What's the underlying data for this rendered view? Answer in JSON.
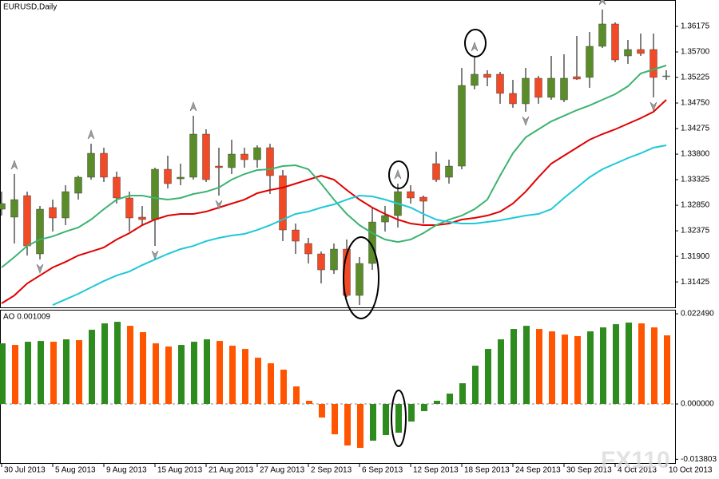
{
  "chart_data": [
    {
      "type": "candlestick",
      "title": "EURUSD,Daily",
      "watermark": "FX110",
      "categories": [
        "30 Jul 2013",
        null,
        null,
        null,
        "5 Aug 2013",
        null,
        null,
        null,
        "9 Aug 2013",
        null,
        null,
        null,
        "15 Aug 2013",
        null,
        null,
        null,
        "21 Aug 2013",
        null,
        null,
        null,
        "27 Aug 2013",
        null,
        null,
        null,
        "2 Sep 2013",
        null,
        null,
        null,
        "6 Sep 2013",
        null,
        null,
        null,
        "12 Sep 2013",
        null,
        null,
        null,
        "18 Sep 2013",
        null,
        null,
        null,
        "24 Sep 2013",
        null,
        null,
        null,
        "30 Sep 2013",
        null,
        null,
        null,
        "4 Oct 2013",
        null,
        null,
        null,
        "10 Oct 2013"
      ],
      "open": [
        1.32777,
        1.32629,
        1.33029,
        1.31946,
        1.32807,
        1.32614,
        1.33074,
        1.33371,
        1.33816,
        1.33371,
        1.32985,
        1.32629,
        1.32584,
        1.33519,
        1.33341,
        1.33371,
        1.34172,
        1.33578,
        1.33549,
        1.33801,
        1.33697,
        1.3392,
        1.334,
        1.32391,
        1.32139,
        1.31946,
        1.31649,
        1.32035,
        1.31174,
        1.31768,
        1.32539,
        1.32658,
        1.33103,
        1.33,
        1.33623,
        1.33371,
        1.33578,
        1.35077,
        1.35285,
        1.35285,
        1.34929,
        1.34736,
        1.35211,
        1.34855,
        1.3481,
        1.3524,
        1.35226,
        1.35804,
        1.3622,
        1.35626,
        1.35745,
        1.35745,
        1.3524
      ],
      "high": [
        1.33103,
        1.3343,
        1.33103,
        1.32836,
        1.32955,
        1.33222,
        1.334,
        1.33994,
        1.3392,
        1.33474,
        1.33103,
        1.32836,
        1.33549,
        1.33771,
        1.33623,
        1.34513,
        1.34261,
        1.3392,
        1.34068,
        1.3392,
        1.33964,
        1.33994,
        1.33504,
        1.3251,
        1.32243,
        1.3199,
        1.32139,
        1.32213,
        1.31887,
        1.32807,
        1.32836,
        1.33252,
        1.33222,
        1.33029,
        1.33845,
        1.33697,
        1.35404,
        1.35626,
        1.35359,
        1.35329,
        1.35181,
        1.35404,
        1.35255,
        1.35626,
        1.35656,
        1.35997,
        1.36071,
        1.36487,
        1.36249,
        1.35923,
        1.36042,
        1.36042,
        1.35359
      ],
      "low": [
        1.32658,
        1.32139,
        1.31916,
        1.31842,
        1.32361,
        1.3248,
        1.32955,
        1.33326,
        1.33281,
        1.32881,
        1.32361,
        1.32465,
        1.32094,
        1.33163,
        1.33222,
        1.33326,
        1.33281,
        1.33029,
        1.3343,
        1.33549,
        1.33549,
        1.33059,
        1.32183,
        1.31946,
        1.31768,
        1.31397,
        1.31575,
        1.31145,
        1.30996,
        1.31649,
        1.32361,
        1.32436,
        1.32881,
        1.3251,
        1.33281,
        1.33252,
        1.33519,
        1.35003,
        1.35062,
        1.34736,
        1.34662,
        1.34587,
        1.34736,
        1.3481,
        1.34765,
        1.35181,
        1.35033,
        1.35775,
        1.35507,
        1.35478,
        1.35626,
        1.34855,
        1.35181
      ],
      "close": [
        1.32881,
        1.32955,
        1.32094,
        1.32777,
        1.32614,
        1.33103,
        1.33371,
        1.33816,
        1.33371,
        1.32985,
        1.32614,
        1.32584,
        1.33519,
        1.33252,
        1.33371,
        1.34172,
        1.33326,
        1.33549,
        1.33801,
        1.33697,
        1.3392,
        1.334,
        1.32391,
        1.32183,
        1.31946,
        1.31649,
        1.32035,
        1.31174,
        1.31768,
        1.32539,
        1.32658,
        1.33103,
        1.32985,
        1.32925,
        1.33326,
        1.33578,
        1.35077,
        1.35285,
        1.35226,
        1.34929,
        1.34736,
        1.35211,
        1.34855,
        1.35211,
        1.35211,
        1.35196,
        1.35804,
        1.3622,
        1.35552,
        1.35745,
        1.35671,
        1.35226,
        1.35255
      ],
      "up_color": "#5b8c2a",
      "down_color": "#f04a26",
      "lines": [
        {
          "color": "#e00000",
          "values": [
            1.31026,
            1.31174,
            1.31397,
            1.31545,
            1.31694,
            1.31797,
            1.31916,
            1.3199,
            1.32065,
            1.32213,
            1.32332,
            1.3248,
            1.32584,
            1.32658,
            1.32688,
            1.32688,
            1.32732,
            1.32807,
            1.32881,
            1.32955,
            1.33074,
            1.33133,
            1.33178,
            1.33252,
            1.33326,
            1.334,
            1.33326,
            1.33133,
            1.32955,
            1.32807,
            1.32688,
            1.32584,
            1.3251,
            1.3248,
            1.3248,
            1.3251,
            1.32584,
            1.32614,
            1.32658,
            1.32732,
            1.32881,
            1.33103,
            1.33371,
            1.33623,
            1.33771,
            1.3392,
            1.34068,
            1.34172,
            1.34261,
            1.34365,
            1.34469,
            1.34587,
            1.3481
          ]
        },
        {
          "color": "#3cb371",
          "values": [
            1.31694,
            1.31887,
            1.32094,
            1.32213,
            1.32272,
            1.32361,
            1.32436,
            1.32584,
            1.32777,
            1.32955,
            1.33029,
            1.33029,
            1.32985,
            1.32955,
            1.32985,
            1.33059,
            1.33103,
            1.33178,
            1.33326,
            1.3343,
            1.33504,
            1.33519,
            1.33578,
            1.33593,
            1.33519,
            1.33252,
            1.32955,
            1.32688,
            1.3248,
            1.32332,
            1.32213,
            1.32168,
            1.32213,
            1.32332,
            1.3248,
            1.32584,
            1.32658,
            1.32777,
            1.32955,
            1.334,
            1.33816,
            1.34113,
            1.34261,
            1.34409,
            1.34513,
            1.34617,
            1.34706,
            1.3481,
            1.34914,
            1.35062,
            1.353,
            1.35374,
            1.35448
          ]
        },
        {
          "color": "#1ec8d8",
          "values": [
            null,
            null,
            null,
            null,
            1.30996,
            1.311,
            1.31204,
            1.31323,
            1.31441,
            1.31545,
            1.31619,
            1.31738,
            1.31842,
            1.31946,
            1.32035,
            1.32094,
            1.32183,
            1.32243,
            1.32287,
            1.32317,
            1.32391,
            1.3248,
            1.32584,
            1.32688,
            1.32732,
            1.32807,
            1.32866,
            1.32955,
            1.33029,
            1.33014,
            1.32955,
            1.32881,
            1.32807,
            1.32688,
            1.32584,
            1.32539,
            1.3251,
            1.3251,
            1.32539,
            1.32569,
            1.32614,
            1.32658,
            1.32688,
            1.32777,
            1.32985,
            1.33178,
            1.33371,
            1.33519,
            1.33623,
            1.33727,
            1.33816,
            1.3392,
            1.33964
          ]
        }
      ],
      "fractals_up": [
        1,
        7,
        15,
        31,
        37,
        47
      ],
      "fractals_down": [
        3,
        12,
        17,
        28,
        41,
        51
      ],
      "fractal_color": "#a0a0a0",
      "ylim": [
        1.30952,
        1.36665
      ],
      "yticks": [
        1.36175,
        {
          "value": 1.357,
          "label": "1.35700"
        },
        1.35225,
        {
          "value": 1.3475,
          "label": "1.34750"
        },
        1.34275,
        {
          "value": 1.338,
          "label": "1.33800"
        },
        1.33325,
        {
          "value": 1.3285,
          "label": "1.32850"
        },
        1.32375,
        {
          "value": 1.319,
          "label": "1.31900"
        },
        1.31425
      ]
    },
    {
      "type": "bar",
      "title": "AO 0.001009",
      "values": [
        0.01512,
        0.01473,
        0.01552,
        0.01572,
        0.01552,
        0.01612,
        0.01592,
        0.01851,
        0.0201,
        0.0205,
        0.0195,
        0.01791,
        0.01512,
        0.01433,
        0.01473,
        0.01552,
        0.01612,
        0.01572,
        0.01453,
        0.01373,
        0.01154,
        0.01015,
        0.00856,
        0.00438,
        0.0008,
        -0.00338,
        -0.00756,
        -0.01035,
        -0.01095,
        -0.00915,
        -0.00776,
        -0.00716,
        -0.00438,
        -0.00179,
        0.0008,
        0.00259,
        0.00517,
        0.00955,
        0.01373,
        0.01612,
        0.01871,
        0.0195,
        0.01871,
        0.01811,
        0.01731,
        0.01692,
        0.01811,
        0.0191,
        0.0199,
        0.0203,
        0.0201,
        0.0191,
        0.01711
      ],
      "up_color": "#2e8b1e",
      "down_color": "#ff5500",
      "ylim": [
        -0.01473,
        0.0235
      ],
      "yticks": [
        {
          "value": 0.02249,
          "label": "0.022490"
        },
        {
          "value": 0,
          "label": "0.000000"
        },
        {
          "value": -0.013803,
          "label": "-0.013803"
        }
      ]
    }
  ]
}
